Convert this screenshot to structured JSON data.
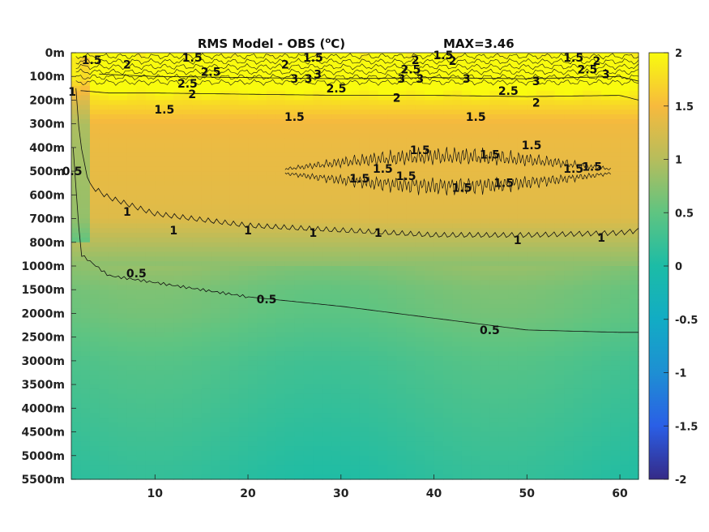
{
  "chart_data": {
    "type": "heatmap",
    "title": "RMS Model - OBS (",
    "title_super": "o",
    "title_unit": "C)",
    "max_label": "MAX=3.46",
    "xlabel": "",
    "ylabel": "",
    "xlim": [
      1,
      62
    ],
    "x_ticks": [
      10,
      20,
      30,
      40,
      50,
      60
    ],
    "y_levels": [
      "0m",
      "100m",
      "200m",
      "300m",
      "400m",
      "500m",
      "600m",
      "700m",
      "800m",
      "1000m",
      "1500m",
      "2000m",
      "2500m",
      "3000m",
      "3500m",
      "4000m",
      "4500m",
      "5000m",
      "5500m"
    ],
    "colorbar": {
      "colormap": "parula",
      "clim": [
        -2,
        2
      ],
      "ticks": [
        "2",
        "1.5",
        "1",
        "0.5",
        "0",
        "-0.5",
        "-1",
        "-1.5",
        "-2"
      ]
    },
    "field_profile": [
      2.1,
      2.3,
      1.8,
      1.45,
      1.4,
      1.38,
      1.35,
      1.3,
      1.0,
      0.75,
      0.6,
      0.55,
      0.45,
      0.35,
      0.3,
      0.25,
      0.2,
      0.15,
      0.1
    ],
    "contour_levels": [
      0.5,
      1,
      1.5,
      2,
      2.5,
      3
    ],
    "contours": [
      {
        "level": 1.5,
        "x": [
          2,
          5,
          10,
          20,
          30,
          40,
          50,
          60,
          62
        ],
        "y": [
          1.6,
          1.7,
          1.7,
          1.75,
          1.8,
          1.8,
          1.85,
          1.8,
          2.0
        ]
      },
      {
        "level": 2.5,
        "x": [
          4,
          10,
          20,
          30,
          40,
          50,
          60,
          62
        ],
        "y": [
          0.9,
          1.0,
          1.05,
          1.1,
          1.05,
          1.1,
          1.0,
          1.2
        ]
      },
      {
        "level": 1,
        "x": [
          1.5,
          2,
          3,
          5,
          10,
          20,
          30,
          40,
          50,
          60,
          62
        ],
        "y": [
          1.5,
          4.0,
          5.6,
          6.1,
          6.8,
          7.3,
          7.5,
          7.7,
          7.7,
          7.6,
          7.5
        ]
      },
      {
        "level": 0.5,
        "x": [
          1.2,
          2,
          5,
          10,
          20,
          30,
          40,
          50,
          60,
          62
        ],
        "y": [
          4.0,
          8.5,
          9.4,
          9.7,
          10.3,
          10.7,
          11.2,
          11.7,
          11.8,
          11.8
        ]
      }
    ],
    "contour_labels": [
      {
        "text": "1.5",
        "x": 3.2,
        "y": 0.3
      },
      {
        "text": "2",
        "x": 7,
        "y": 0.5
      },
      {
        "text": "1.5",
        "x": 14,
        "y": 0.2
      },
      {
        "text": "2.5",
        "x": 16,
        "y": 0.8
      },
      {
        "text": "2",
        "x": 24,
        "y": 0.5
      },
      {
        "text": "1.5",
        "x": 27,
        "y": 0.2
      },
      {
        "text": "3",
        "x": 25,
        "y": 1.1
      },
      {
        "text": "3",
        "x": 26.5,
        "y": 1.1
      },
      {
        "text": "3",
        "x": 27.5,
        "y": 0.9
      },
      {
        "text": "2.5",
        "x": 13.5,
        "y": 1.3
      },
      {
        "text": "2",
        "x": 14,
        "y": 1.75
      },
      {
        "text": "2.5",
        "x": 29.5,
        "y": 1.5
      },
      {
        "text": "2.5",
        "x": 37.5,
        "y": 0.7
      },
      {
        "text": "3",
        "x": 36.5,
        "y": 1.1
      },
      {
        "text": "3",
        "x": 38.5,
        "y": 1.1
      },
      {
        "text": "2",
        "x": 38,
        "y": 0.3
      },
      {
        "text": "1.5",
        "x": 41,
        "y": 0.1
      },
      {
        "text": "2",
        "x": 42,
        "y": 0.35
      },
      {
        "text": "3",
        "x": 43.5,
        "y": 1.1
      },
      {
        "text": "2",
        "x": 36,
        "y": 1.9
      },
      {
        "text": "2.5",
        "x": 48,
        "y": 1.6
      },
      {
        "text": "3",
        "x": 51,
        "y": 1.2
      },
      {
        "text": "2",
        "x": 51,
        "y": 2.1
      },
      {
        "text": "1.5",
        "x": 55,
        "y": 0.2
      },
      {
        "text": "2",
        "x": 57.5,
        "y": 0.35
      },
      {
        "text": "2.5",
        "x": 56.5,
        "y": 0.7
      },
      {
        "text": "3",
        "x": 58.5,
        "y": 0.9
      },
      {
        "text": "1.5",
        "x": 11,
        "y": 2.4
      },
      {
        "text": "1.5",
        "x": 25,
        "y": 2.7
      },
      {
        "text": "1.5",
        "x": 44.5,
        "y": 2.7
      },
      {
        "text": "1",
        "x": 1.1,
        "y": 1.65
      },
      {
        "text": "0.5",
        "x": 1.1,
        "y": 5.0
      },
      {
        "text": "1",
        "x": 7,
        "y": 6.7
      },
      {
        "text": "1",
        "x": 12,
        "y": 7.5
      },
      {
        "text": "1",
        "x": 20,
        "y": 7.5
      },
      {
        "text": "1",
        "x": 27,
        "y": 7.6
      },
      {
        "text": "1",
        "x": 34,
        "y": 7.6
      },
      {
        "text": "1",
        "x": 49,
        "y": 7.9
      },
      {
        "text": "1",
        "x": 58,
        "y": 7.8
      },
      {
        "text": "0.5",
        "x": 8,
        "y": 9.3
      },
      {
        "text": "0.5",
        "x": 22,
        "y": 10.4
      },
      {
        "text": "0.5",
        "x": 46,
        "y": 11.7
      },
      {
        "text": "1.5",
        "x": 38.5,
        "y": 4.1
      },
      {
        "text": "1.5",
        "x": 46,
        "y": 4.3
      },
      {
        "text": "1.5",
        "x": 50.5,
        "y": 3.9
      },
      {
        "text": "1.5",
        "x": 32,
        "y": 5.3
      },
      {
        "text": "1.5",
        "x": 34.5,
        "y": 4.9
      },
      {
        "text": "1.5",
        "x": 37,
        "y": 5.2
      },
      {
        "text": "1.5",
        "x": 43,
        "y": 5.7
      },
      {
        "text": "1.5",
        "x": 47.5,
        "y": 5.5
      },
      {
        "text": "1.5",
        "x": 55,
        "y": 4.9
      },
      {
        "text": "1.5",
        "x": 57,
        "y": 4.8
      }
    ],
    "blob_region": {
      "x": [
        24,
        59
      ],
      "y_center": 5.0,
      "level": 1.5
    }
  }
}
